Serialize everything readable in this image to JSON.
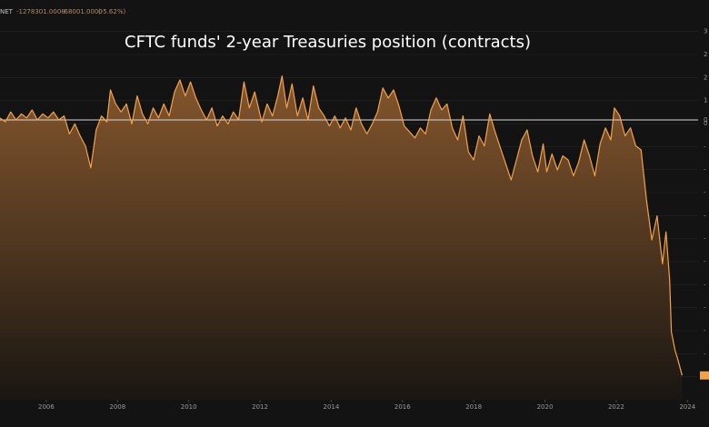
{
  "chart_data": {
    "type": "area",
    "title": "CFTC funds' 2-year Treasuries position (contracts)",
    "legend": {
      "series_label": "NET",
      "last_value": "-1278301.0000",
      "change": "-68001.0000",
      "change_pct": "(-5.62%)"
    },
    "x_tick_labels": [
      "2006",
      "2008",
      "2010",
      "2012",
      "2014",
      "2016",
      "2018",
      "2020",
      "2022",
      "2024"
    ],
    "y_tick_labels": [
      "3",
      "2",
      "2",
      "1",
      "0",
      "-",
      "-",
      "-",
      "-",
      "-",
      "-",
      "-",
      "-",
      "-",
      "-",
      "-"
    ],
    "y_zero_label": "0",
    "xlim": [
      2004.7,
      2024.3
    ],
    "ylim": [
      -1400000,
      500000
    ],
    "baseline": 0,
    "colors": {
      "line": "#f5a14a",
      "fill_top": "#8a5a2e",
      "fill_bottom": "#1a1612",
      "background": "#131313",
      "grid": "#2a2a2a",
      "zero_line": "#d8d8d8",
      "last_value_marker": "#f5a14a"
    },
    "series": [
      {
        "values": [
          [
            2004.7,
            10000
          ],
          [
            2004.85,
            -10000
          ],
          [
            2005.0,
            40000
          ],
          [
            2005.15,
            0
          ],
          [
            2005.3,
            30000
          ],
          [
            2005.45,
            10000
          ],
          [
            2005.6,
            50000
          ],
          [
            2005.75,
            0
          ],
          [
            2005.9,
            30000
          ],
          [
            2006.05,
            10000
          ],
          [
            2006.2,
            40000
          ],
          [
            2006.35,
            0
          ],
          [
            2006.5,
            20000
          ],
          [
            2006.65,
            -70000
          ],
          [
            2006.8,
            -20000
          ],
          [
            2006.95,
            -80000
          ],
          [
            2007.1,
            -130000
          ],
          [
            2007.25,
            -240000
          ],
          [
            2007.4,
            -50000
          ],
          [
            2007.55,
            20000
          ],
          [
            2007.7,
            -10000
          ],
          [
            2007.8,
            150000
          ],
          [
            2007.95,
            80000
          ],
          [
            2008.1,
            40000
          ],
          [
            2008.25,
            80000
          ],
          [
            2008.4,
            -20000
          ],
          [
            2008.55,
            120000
          ],
          [
            2008.7,
            30000
          ],
          [
            2008.85,
            -20000
          ],
          [
            2009.0,
            60000
          ],
          [
            2009.15,
            10000
          ],
          [
            2009.3,
            80000
          ],
          [
            2009.45,
            20000
          ],
          [
            2009.6,
            140000
          ],
          [
            2009.75,
            200000
          ],
          [
            2009.9,
            120000
          ],
          [
            2010.05,
            190000
          ],
          [
            2010.2,
            110000
          ],
          [
            2010.35,
            50000
          ],
          [
            2010.5,
            0
          ],
          [
            2010.65,
            60000
          ],
          [
            2010.8,
            -30000
          ],
          [
            2010.95,
            20000
          ],
          [
            2011.1,
            -20000
          ],
          [
            2011.25,
            40000
          ],
          [
            2011.4,
            0
          ],
          [
            2011.55,
            190000
          ],
          [
            2011.7,
            60000
          ],
          [
            2011.85,
            140000
          ],
          [
            2012.05,
            -10000
          ],
          [
            2012.2,
            80000
          ],
          [
            2012.35,
            20000
          ],
          [
            2012.5,
            120000
          ],
          [
            2012.62,
            220000
          ],
          [
            2012.75,
            60000
          ],
          [
            2012.9,
            180000
          ],
          [
            2013.05,
            20000
          ],
          [
            2013.2,
            110000
          ],
          [
            2013.35,
            0
          ],
          [
            2013.5,
            170000
          ],
          [
            2013.65,
            60000
          ],
          [
            2013.8,
            20000
          ],
          [
            2013.95,
            -30000
          ],
          [
            2014.1,
            20000
          ],
          [
            2014.25,
            -40000
          ],
          [
            2014.4,
            10000
          ],
          [
            2014.55,
            -50000
          ],
          [
            2014.7,
            60000
          ],
          [
            2014.85,
            -20000
          ],
          [
            2015.0,
            -70000
          ],
          [
            2015.15,
            -20000
          ],
          [
            2015.3,
            40000
          ],
          [
            2015.45,
            160000
          ],
          [
            2015.6,
            110000
          ],
          [
            2015.75,
            150000
          ],
          [
            2015.9,
            70000
          ],
          [
            2016.05,
            -30000
          ],
          [
            2016.2,
            -60000
          ],
          [
            2016.35,
            -90000
          ],
          [
            2016.5,
            -40000
          ],
          [
            2016.65,
            -70000
          ],
          [
            2016.8,
            50000
          ],
          [
            2016.95,
            110000
          ],
          [
            2017.1,
            50000
          ],
          [
            2017.25,
            80000
          ],
          [
            2017.4,
            -40000
          ],
          [
            2017.55,
            -100000
          ],
          [
            2017.7,
            20000
          ],
          [
            2017.85,
            -160000
          ],
          [
            2018.0,
            -200000
          ],
          [
            2018.15,
            -80000
          ],
          [
            2018.3,
            -130000
          ],
          [
            2018.45,
            30000
          ],
          [
            2018.6,
            -60000
          ],
          [
            2018.75,
            -140000
          ],
          [
            2018.9,
            -220000
          ],
          [
            2019.05,
            -300000
          ],
          [
            2019.2,
            -200000
          ],
          [
            2019.35,
            -100000
          ],
          [
            2019.5,
            -50000
          ],
          [
            2019.65,
            -180000
          ],
          [
            2019.8,
            -260000
          ],
          [
            2019.95,
            -120000
          ],
          [
            2020.05,
            -260000
          ],
          [
            2020.2,
            -170000
          ],
          [
            2020.35,
            -250000
          ],
          [
            2020.5,
            -180000
          ],
          [
            2020.65,
            -200000
          ],
          [
            2020.8,
            -280000
          ],
          [
            2020.95,
            -210000
          ],
          [
            2021.1,
            -100000
          ],
          [
            2021.25,
            -180000
          ],
          [
            2021.4,
            -280000
          ],
          [
            2021.55,
            -120000
          ],
          [
            2021.7,
            -40000
          ],
          [
            2021.85,
            -100000
          ],
          [
            2021.95,
            60000
          ],
          [
            2022.1,
            20000
          ],
          [
            2022.25,
            -80000
          ],
          [
            2022.4,
            -40000
          ],
          [
            2022.55,
            -130000
          ],
          [
            2022.7,
            -150000
          ],
          [
            2022.85,
            -400000
          ],
          [
            2023.0,
            -600000
          ],
          [
            2023.15,
            -480000
          ],
          [
            2023.3,
            -720000
          ],
          [
            2023.4,
            -560000
          ],
          [
            2023.5,
            -800000
          ],
          [
            2023.55,
            -1060000
          ],
          [
            2023.65,
            -1150000
          ],
          [
            2023.75,
            -1210000
          ],
          [
            2023.85,
            -1278301
          ]
        ]
      }
    ]
  }
}
